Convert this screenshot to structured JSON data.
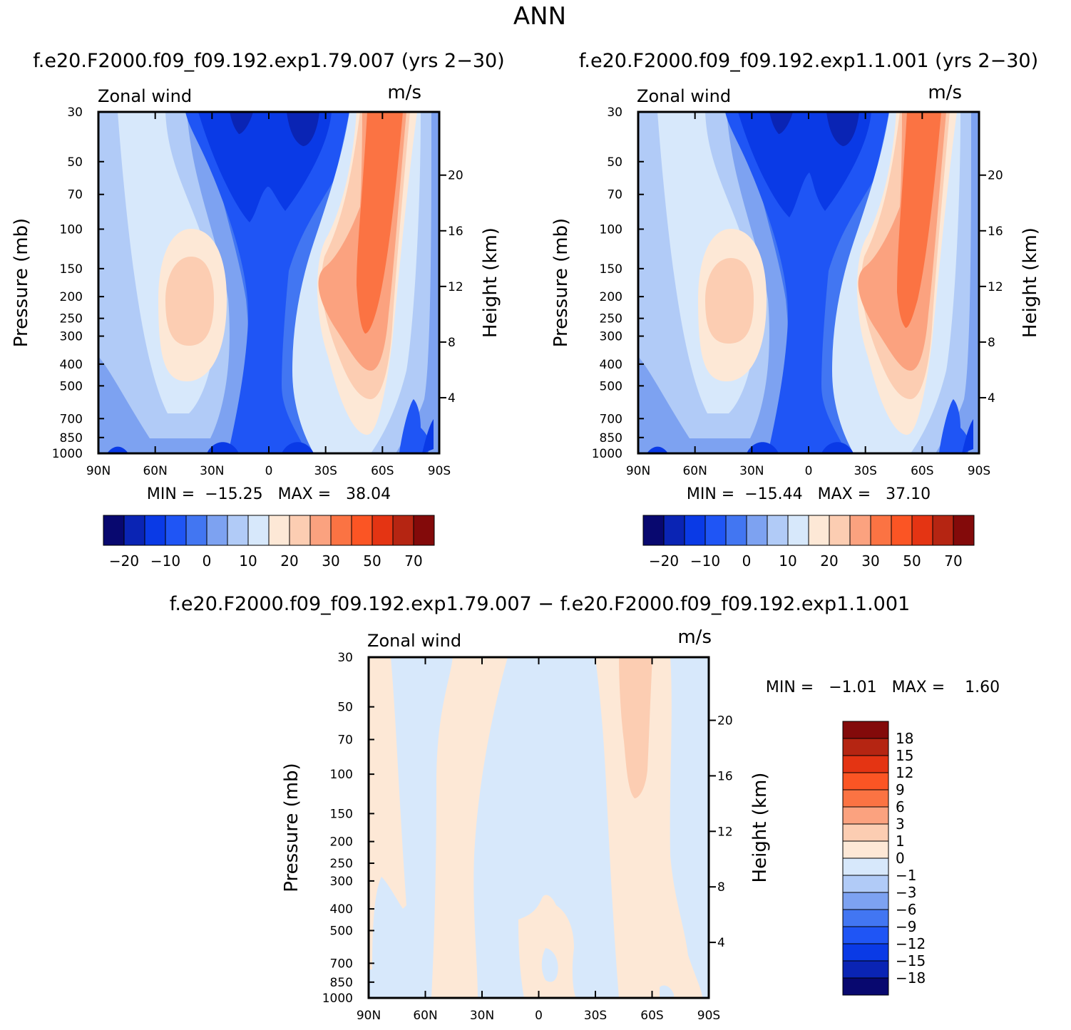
{
  "figure": {
    "title": "ANN",
    "diff_title": "f.e20.F2000.f09_f09.192.exp1.79.007  −  f.e20.F2000.f09_f09.192.exp1.1.001"
  },
  "colors": {
    "main_scale": [
      "#08086f",
      "#0a24b4",
      "#0a3ae6",
      "#1f55f5",
      "#4276f2",
      "#7da2f1",
      "#b1cbf7",
      "#d7e8fb",
      "#fde8d6",
      "#fccdb2",
      "#fba27f",
      "#fb7343",
      "#fb5524",
      "#e43413",
      "#b52512",
      "#830a0a"
    ],
    "diff_scale": [
      "#830a0a",
      "#b52512",
      "#e43413",
      "#fb5524",
      "#fb7343",
      "#fba27f",
      "#fccdb2",
      "#fde8d6",
      "#d7e8fb",
      "#b1cbf7",
      "#7da2f1",
      "#4276f2",
      "#1f55f5",
      "#0a3ae6",
      "#0a24b4",
      "#08086f"
    ]
  },
  "chart_data": [
    {
      "type": "contour",
      "case_title": "f.e20.F2000.f09_f09.192.exp1.79.007 (yrs 2−30)",
      "variable": "Zonal wind",
      "units": "m/s",
      "ylabel": "Pressure (mb)",
      "ylabel_right": "Height (km)",
      "x_ticks": [
        "90N",
        "60N",
        "30N",
        "0",
        "30S",
        "60S",
        "90S"
      ],
      "y_ticks": [
        "30",
        "50",
        "70",
        "100",
        "150",
        "200",
        "250",
        "300",
        "400",
        "500",
        "700",
        "850",
        "1000"
      ],
      "y_right_ticks": [
        "20",
        "16",
        "12",
        "8",
        "4"
      ],
      "stats": "MIN =  −15.25   MAX =   38.04",
      "min": -15.25,
      "max": 38.04,
      "colorbar_labels": [
        "−20",
        "−10",
        "0",
        "10",
        "20",
        "30",
        "50",
        "70"
      ]
    },
    {
      "type": "contour",
      "case_title": "f.e20.F2000.f09_f09.192.exp1.1.001 (yrs 2−30)",
      "variable": "Zonal wind",
      "units": "m/s",
      "ylabel": "Pressure (mb)",
      "ylabel_right": "Height (km)",
      "x_ticks": [
        "90N",
        "60N",
        "30N",
        "0",
        "30S",
        "60S",
        "90S"
      ],
      "y_ticks": [
        "30",
        "50",
        "70",
        "100",
        "150",
        "200",
        "250",
        "300",
        "400",
        "500",
        "700",
        "850",
        "1000"
      ],
      "y_right_ticks": [
        "20",
        "16",
        "12",
        "8",
        "4"
      ],
      "stats": "MIN =  −15.44   MAX =   37.10",
      "min": -15.44,
      "max": 37.1,
      "colorbar_labels": [
        "−20",
        "−10",
        "0",
        "10",
        "20",
        "30",
        "50",
        "70"
      ]
    },
    {
      "type": "contour",
      "case_title": "f.e20.F2000.f09_f09.192.exp1.79.007  −  f.e20.F2000.f09_f09.192.exp1.1.001",
      "variable": "Zonal wind",
      "units": "m/s",
      "ylabel": "Pressure (mb)",
      "ylabel_right": "Height (km)",
      "x_ticks": [
        "90N",
        "60N",
        "30N",
        "0",
        "30S",
        "60S",
        "90S"
      ],
      "y_ticks": [
        "30",
        "50",
        "70",
        "100",
        "150",
        "200",
        "250",
        "300",
        "400",
        "500",
        "700",
        "850",
        "1000"
      ],
      "y_right_ticks": [
        "20",
        "16",
        "12",
        "8",
        "4"
      ],
      "stats": "MIN =   −1.01   MAX =    1.60",
      "min": -1.01,
      "max": 1.6,
      "colorbar_labels": [
        "18",
        "15",
        "12",
        "9",
        "6",
        "3",
        "1",
        "0",
        "−1",
        "−3",
        "−6",
        "−9",
        "−12",
        "−15",
        "−18"
      ]
    }
  ]
}
